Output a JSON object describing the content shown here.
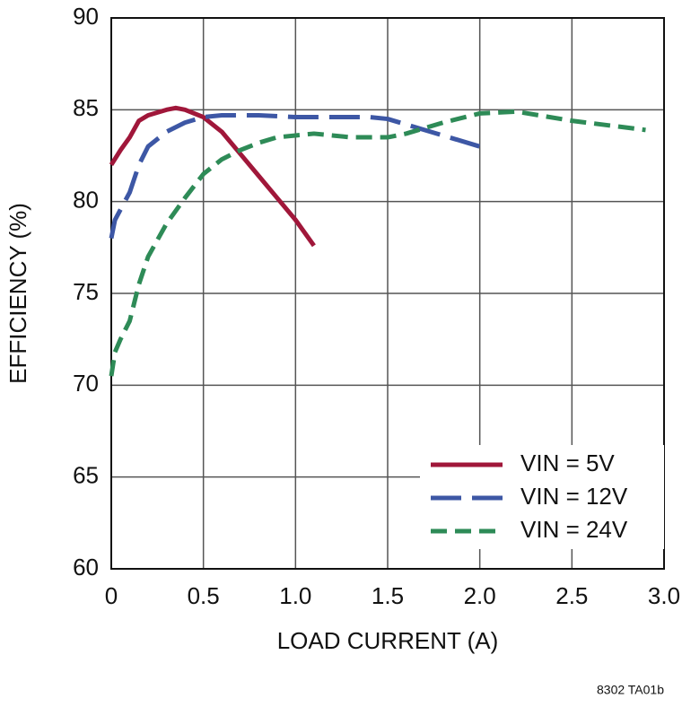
{
  "chart_data": {
    "type": "line",
    "xlabel": "LOAD CURRENT (A)",
    "ylabel": "EFFICIENCY (%)",
    "footnote": "8302 TA01b",
    "xlim": [
      0,
      3
    ],
    "ylim": [
      60,
      90
    ],
    "xticks": [
      0,
      0.5,
      {
        "value": 1,
        "label": "1.0"
      },
      1.5,
      {
        "value": 2,
        "label": "2.0"
      },
      2.5,
      {
        "value": 3,
        "label": "3.0"
      }
    ],
    "yticks": [
      60,
      65,
      70,
      75,
      80,
      85,
      90
    ],
    "grid": true,
    "legend": "lower right",
    "series": [
      {
        "name": "VIN = 5V",
        "color": "#a0173a",
        "x": [
          0,
          0.05,
          0.1,
          0.15,
          0.2,
          0.3,
          0.35,
          0.4,
          0.5,
          0.6,
          0.7,
          0.8,
          0.9,
          1.0,
          1.1
        ],
        "values": [
          82,
          82.8,
          83.5,
          84.4,
          84.7,
          85.0,
          85.1,
          85.0,
          84.6,
          83.8,
          82.6,
          81.4,
          80.2,
          79.0,
          77.6
        ]
      },
      {
        "name": "VIN = 12V",
        "color": "#3d57a5",
        "x": [
          0,
          0.02,
          0.1,
          0.15,
          0.2,
          0.3,
          0.4,
          0.5,
          0.6,
          0.8,
          1.0,
          1.2,
          1.4,
          1.5,
          1.6,
          1.8,
          2.0
        ],
        "values": [
          78,
          79,
          80.5,
          82,
          83,
          83.8,
          84.3,
          84.6,
          84.7,
          84.7,
          84.6,
          84.6,
          84.6,
          84.5,
          84.2,
          83.6,
          83.0
        ]
      },
      {
        "name": "VIN = 24V",
        "color": "#2e8b57",
        "x": [
          0,
          0.02,
          0.05,
          0.1,
          0.15,
          0.2,
          0.3,
          0.4,
          0.5,
          0.6,
          0.7,
          0.8,
          0.9,
          1.0,
          1.1,
          1.2,
          1.3,
          1.5,
          1.6,
          1.8,
          2.0,
          2.2,
          2.5,
          2.9
        ],
        "values": [
          70.5,
          71.8,
          72.5,
          73.5,
          75.5,
          77,
          78.8,
          80.2,
          81.5,
          82.3,
          82.8,
          83.2,
          83.5,
          83.6,
          83.7,
          83.6,
          83.5,
          83.5,
          83.7,
          84.3,
          84.8,
          84.9,
          84.4,
          83.9
        ]
      }
    ]
  }
}
